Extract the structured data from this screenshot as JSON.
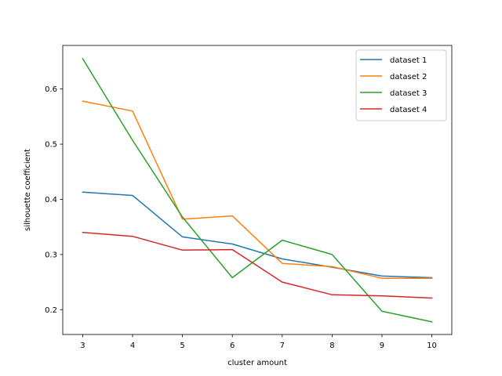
{
  "chart_data": {
    "type": "line",
    "title": "",
    "xlabel": "cluster amount",
    "ylabel": "silhouette coefficient",
    "x": [
      3,
      4,
      5,
      6,
      7,
      8,
      9,
      10
    ],
    "xticks": [
      "3",
      "4",
      "5",
      "6",
      "7",
      "8",
      "9",
      "10"
    ],
    "yticks": [
      "0.2",
      "0.3",
      "0.4",
      "0.5",
      "0.6"
    ],
    "xlim": [
      2.6,
      10.4
    ],
    "ylim": [
      0.155,
      0.679
    ],
    "grid": false,
    "legend_position": "top-right",
    "series": [
      {
        "name": "dataset 1",
        "color": "#1f77b4",
        "values": [
          0.413,
          0.407,
          0.332,
          0.319,
          0.292,
          0.277,
          0.261,
          0.258
        ]
      },
      {
        "name": "dataset 2",
        "color": "#ff7f0e",
        "values": [
          0.578,
          0.56,
          0.364,
          0.37,
          0.284,
          0.278,
          0.257,
          0.257
        ]
      },
      {
        "name": "dataset 3",
        "color": "#2ca02c",
        "values": [
          0.655,
          0.507,
          0.368,
          0.258,
          0.326,
          0.3,
          0.197,
          0.178
        ]
      },
      {
        "name": "dataset 4",
        "color": "#d62728",
        "values": [
          0.34,
          0.333,
          0.308,
          0.309,
          0.25,
          0.227,
          0.225,
          0.221
        ]
      }
    ]
  }
}
